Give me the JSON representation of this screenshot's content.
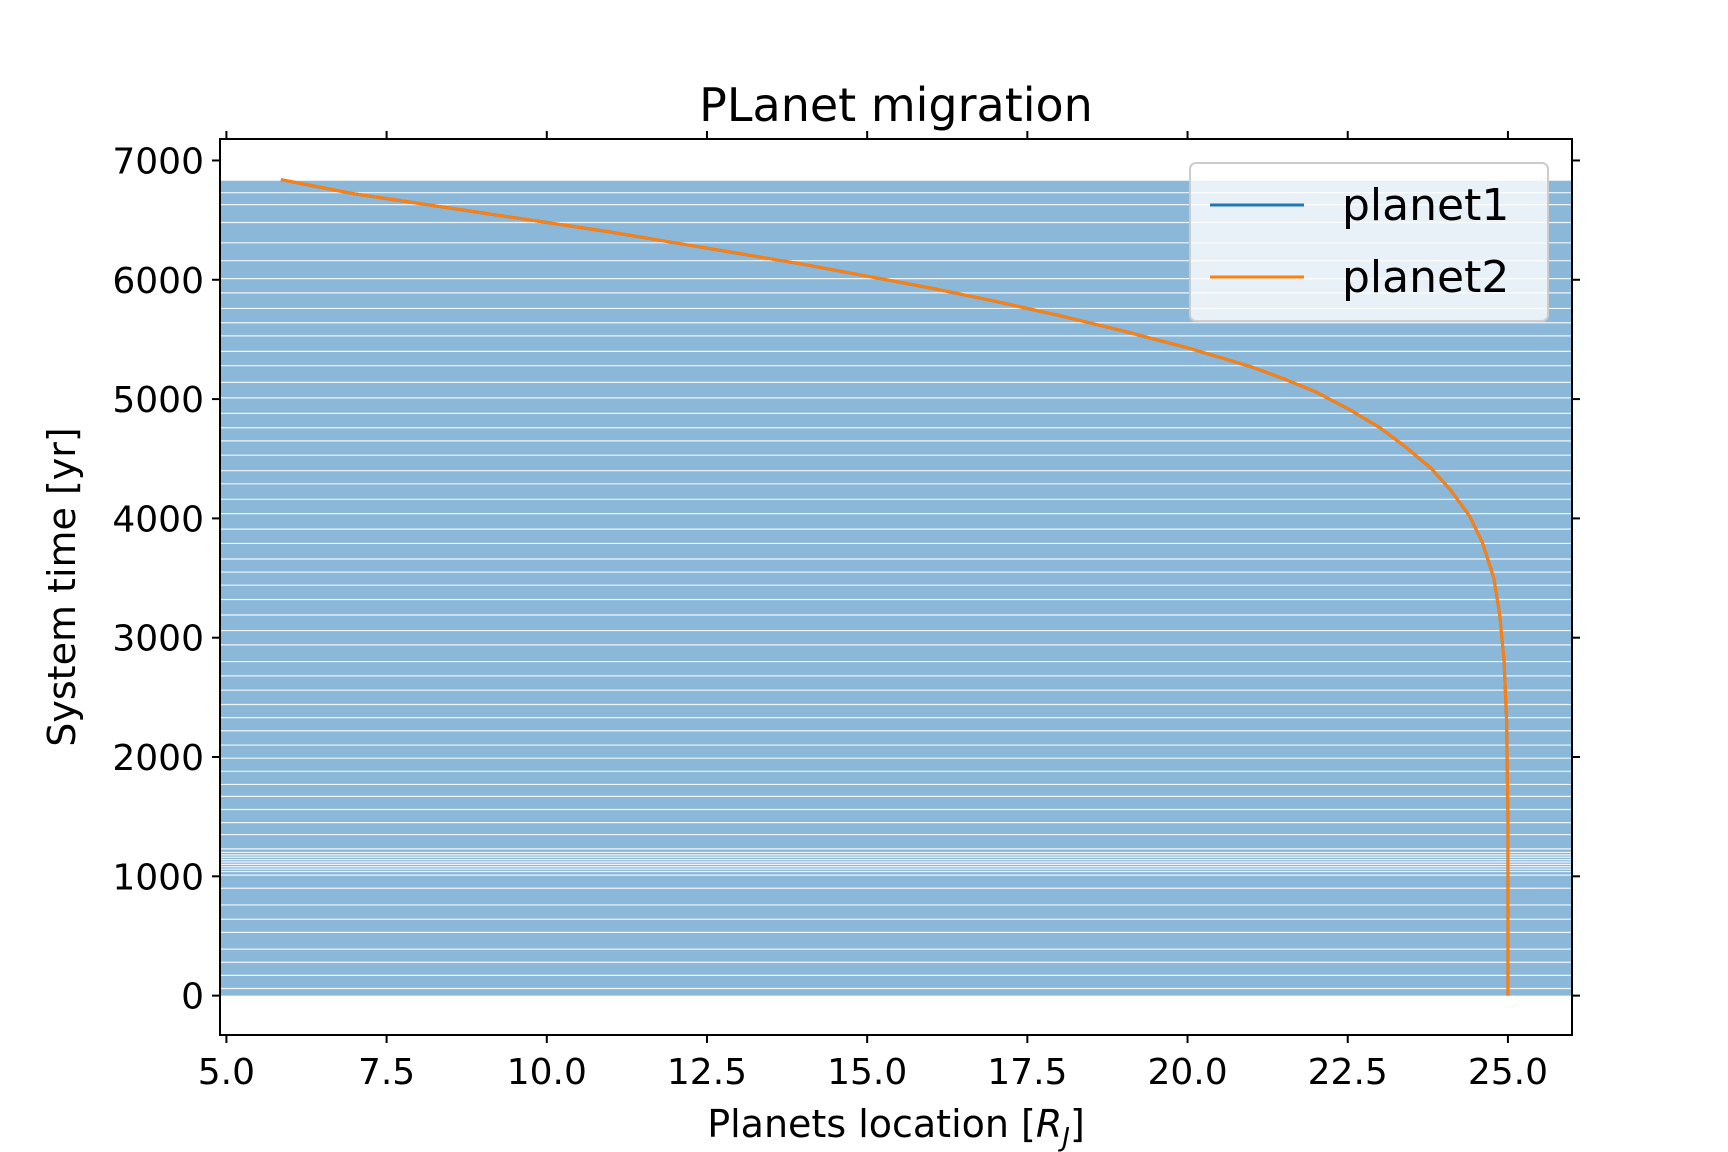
{
  "chart_data": {
    "type": "line",
    "title": "PLanet migration",
    "xlabel": "Planets location [R_J]",
    "xlabel_main": "Planets location [",
    "xlabel_symbol": "R",
    "xlabel_subscript": "J",
    "xlabel_close": "]",
    "ylabel": "System time [yr]",
    "xlim": [
      4.9,
      26.0
    ],
    "ylim": [
      -330,
      7180
    ],
    "xticks": [
      5.0,
      7.5,
      10.0,
      12.5,
      15.0,
      17.5,
      20.0,
      22.5,
      25.0
    ],
    "xtick_labels": [
      "5.0",
      "7.5",
      "10.0",
      "12.5",
      "15.0",
      "17.5",
      "20.0",
      "22.5",
      "25.0"
    ],
    "yticks": [
      0,
      1000,
      2000,
      3000,
      4000,
      5000,
      6000,
      7000
    ],
    "ytick_labels": [
      "0",
      "1000",
      "2000",
      "3000",
      "4000",
      "5000",
      "6000",
      "7000"
    ],
    "grid": false,
    "legend_position": "top-right",
    "background_band": {
      "x_range": [
        4.9,
        26.0
      ],
      "y_range": [
        0,
        6830
      ],
      "color": "#8bb8d9",
      "line_color": "#ffffff",
      "line_times": [
        60,
        170,
        280,
        390,
        530,
        640,
        760,
        900,
        1010,
        1040,
        1060,
        1080,
        1100,
        1120,
        1140,
        1160,
        1180,
        1200,
        1230,
        1350,
        1450,
        1560,
        1670,
        1770,
        1880,
        1990,
        2100,
        2220,
        2330,
        2440,
        2560,
        2680,
        2800,
        2940,
        3060,
        3190,
        3320,
        3440,
        3550,
        3660,
        3790,
        3910,
        4040,
        4160,
        4290,
        4400,
        4530,
        4650,
        4760,
        4880,
        5010,
        5140,
        5280,
        5400,
        5530,
        5640,
        5760,
        5890,
        6010,
        6160,
        6310,
        6480,
        6630,
        6730
      ]
    },
    "series": [
      {
        "name": "planet1",
        "color": "#1f77b4",
        "x": [
          25.0,
          25.0,
          24.98,
          24.94,
          24.87,
          24.78,
          24.6,
          24.4,
          24.1,
          23.8,
          23.4,
          23.0,
          22.5,
          22.0,
          21.5,
          21.0,
          20.5,
          20.0,
          19.0,
          18.0,
          17.0,
          16.0,
          15.0,
          14.0,
          13.0,
          12.0,
          11.0,
          10.0,
          9.0,
          8.0,
          7.0,
          5.85
        ],
        "y": [
          0,
          1500,
          2300,
          2800,
          3200,
          3500,
          3800,
          4020,
          4240,
          4420,
          4600,
          4760,
          4920,
          5060,
          5170,
          5270,
          5350,
          5430,
          5570,
          5700,
          5820,
          5930,
          6030,
          6130,
          6220,
          6310,
          6400,
          6480,
          6560,
          6640,
          6720,
          6840
        ]
      },
      {
        "name": "planet2",
        "color": "#ff7f0e",
        "x": [
          25.0,
          25.0,
          24.98,
          24.94,
          24.87,
          24.78,
          24.6,
          24.4,
          24.1,
          23.8,
          23.4,
          23.0,
          22.5,
          22.0,
          21.5,
          21.0,
          20.5,
          20.0,
          19.0,
          18.0,
          17.0,
          16.0,
          15.0,
          14.0,
          13.0,
          12.0,
          11.0,
          10.0,
          9.0,
          8.0,
          7.0,
          5.85
        ],
        "y": [
          0,
          1500,
          2300,
          2800,
          3200,
          3500,
          3800,
          4020,
          4240,
          4420,
          4600,
          4760,
          4920,
          5060,
          5170,
          5270,
          5350,
          5430,
          5570,
          5700,
          5820,
          5930,
          6030,
          6130,
          6220,
          6310,
          6400,
          6480,
          6560,
          6640,
          6720,
          6840
        ]
      }
    ]
  }
}
